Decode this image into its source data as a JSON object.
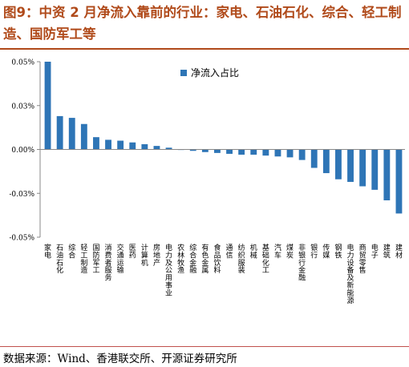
{
  "title": "图9：中资 2 月净流入靠前的行业：家电、石油石化、综合、轻工制造、国防军工等",
  "source": "数据来源：Wind、香港联交所、开源证券研究所",
  "colors": {
    "title": "#b04a1a",
    "bar": "#2e75b6",
    "axis": "#888888"
  },
  "chart_data": {
    "type": "bar",
    "categories": [
      "家电",
      "石油石化",
      "综合",
      "轻工制造",
      "国防军工",
      "消费者服务",
      "交通运输",
      "医药",
      "计算机",
      "房地产",
      "电力及公用事业",
      "农林牧渔",
      "综合金融",
      "有色金属",
      "食品饮料",
      "通信",
      "纺织服装",
      "机械",
      "基础化工",
      "汽车",
      "煤炭",
      "非银行金融",
      "银行",
      "传媒",
      "钢铁",
      "电力设备及新能源",
      "商贸零售",
      "电子",
      "建筑",
      "建材"
    ],
    "series": [
      {
        "name": "净流入占比",
        "values": [
          0.05,
          0.019,
          0.018,
          0.0145,
          0.007,
          0.0055,
          0.005,
          0.004,
          0.003,
          0.002,
          0.001,
          -0.0003,
          -0.0008,
          -0.0015,
          -0.002,
          -0.0025,
          -0.003,
          -0.003,
          -0.0035,
          -0.004,
          -0.0045,
          -0.006,
          -0.0105,
          -0.0135,
          -0.017,
          -0.0185,
          -0.021,
          -0.023,
          -0.029,
          -0.0365
        ]
      }
    ],
    "yticks": [
      "0.05%",
      "0.03%",
      "0.00%",
      "-0.03%",
      "-0.05%"
    ],
    "ylim": [
      -0.05,
      0.05
    ],
    "legend_position": "top-center",
    "grid": false
  }
}
